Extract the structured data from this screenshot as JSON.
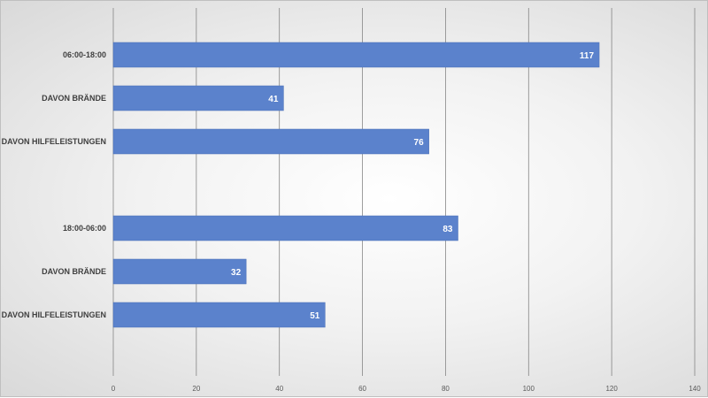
{
  "chart_data": {
    "type": "bar",
    "orientation": "horizontal",
    "categories": [
      "06:00-18:00",
      "DAVON BRÄNDE",
      "DAVON HILFELEISTUNGEN",
      "",
      "18:00-06:00",
      "DAVON BRÄNDE",
      "DAVON HILFELEISTUNGEN"
    ],
    "values": [
      117,
      41,
      76,
      null,
      83,
      32,
      51
    ],
    "data_labels": [
      "117",
      "41",
      "76",
      "",
      "83",
      "32",
      "51"
    ],
    "xlim": [
      0,
      140
    ],
    "x_ticks": [
      0,
      20,
      40,
      60,
      80,
      100,
      120,
      140
    ],
    "x_tick_labels": [
      "0",
      "20",
      "40",
      "60",
      "80",
      "100",
      "120",
      "140"
    ],
    "grid": "vertical",
    "legend": "none",
    "colors": {
      "bar": "#5b82cc",
      "bar_border": "#4a6fb5",
      "gridline": "#7f7f7f"
    }
  }
}
